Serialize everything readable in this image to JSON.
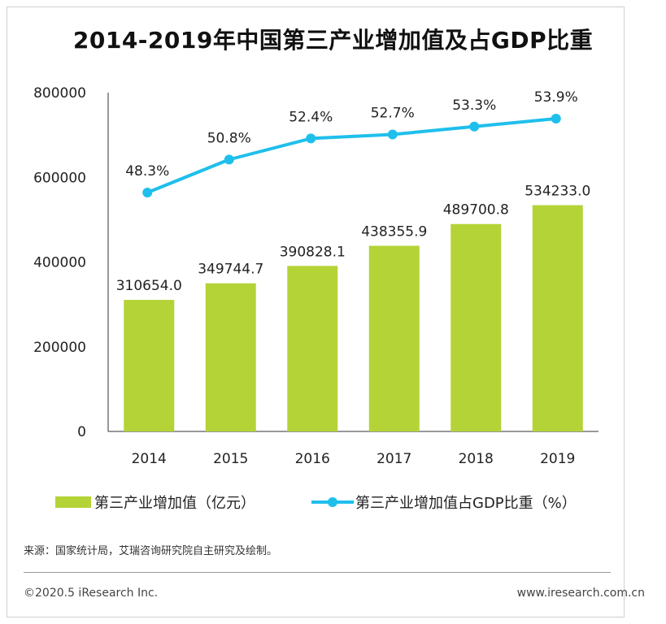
{
  "title": "2014-2019年中国第三产业增加值及占GDP比重",
  "colors": {
    "bar": "#b4d336",
    "line": "#1fbfec",
    "axis": "#333333"
  },
  "chart_data": {
    "type": "bar+line",
    "title": "2014-2019年中国第三产业增加值及占GDP比重",
    "categories": [
      "2014",
      "2015",
      "2016",
      "2017",
      "2018",
      "2019"
    ],
    "ylim": [
      0,
      800000
    ],
    "yticks": [
      "0",
      "200000",
      "400000",
      "600000",
      "800000"
    ],
    "grid": false,
    "series": [
      {
        "name": "第三产业增加值（亿元）",
        "type": "bar",
        "values": [
          310654.0,
          349744.7,
          390828.1,
          438355.9,
          489700.8,
          534233.0
        ],
        "labels": [
          "310654.0",
          "349744.7",
          "390828.1",
          "438355.9",
          "489700.8",
          "534233.0"
        ]
      },
      {
        "name": "第三产业增加值占GDP比重（%）",
        "type": "line",
        "values": [
          48.3,
          50.8,
          52.4,
          52.7,
          53.3,
          53.9
        ],
        "labels": [
          "48.3%",
          "50.8%",
          "52.4%",
          "52.7%",
          "53.3%",
          "53.9%"
        ]
      }
    ],
    "legend_position": "bottom"
  },
  "legend": {
    "bar_label": "第三产业增加值（亿元）",
    "line_label": "第三产业增加值占GDP比重（%）"
  },
  "footer": {
    "source": "来源：国家统计局，艾瑞咨询研究院自主研究及绘制。",
    "copyright": "©2020.5 iResearch Inc.",
    "website": "www.iresearch.com.cn"
  }
}
